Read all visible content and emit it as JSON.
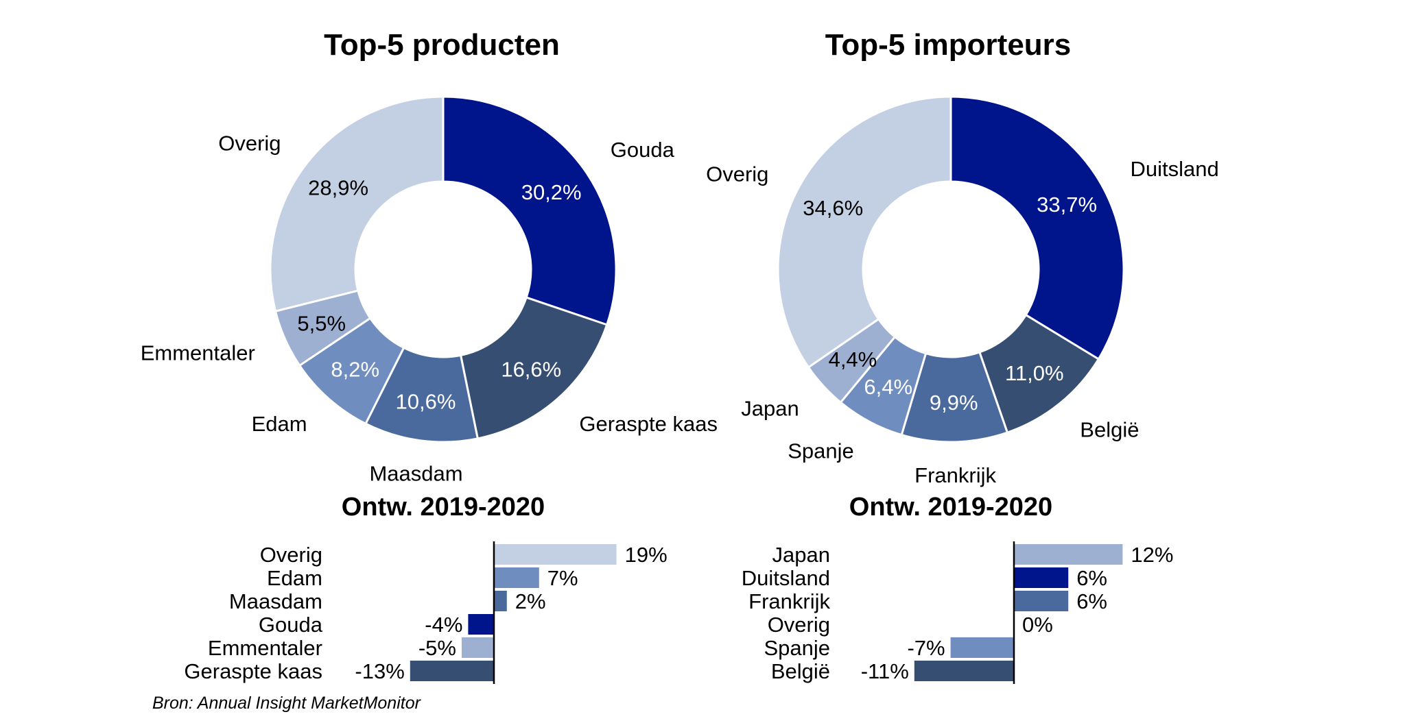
{
  "colors": {
    "dark_blue": "#00148C",
    "slate": "#374E73",
    "mid_blue": "#4A6A9E",
    "steel_blue": "#6F8DBE",
    "periwinkle": "#9EB0D2",
    "light": "#C3D0E3"
  },
  "source": "Bron: Annual Insight MarketMonitor",
  "chart_data": [
    {
      "type": "pie",
      "donut": true,
      "title": "Top-5 producten",
      "slices": [
        {
          "label": "Gouda",
          "value": 30.2,
          "value_label": "30,2%",
          "color": "#00148C"
        },
        {
          "label": "Geraspte kaas",
          "value": 16.6,
          "value_label": "16,6%",
          "color": "#374E73"
        },
        {
          "label": "Maasdam",
          "value": 10.6,
          "value_label": "10,6%",
          "color": "#4A6A9E"
        },
        {
          "label": "Edam",
          "value": 8.2,
          "value_label": "8,2%",
          "color": "#6F8DBE"
        },
        {
          "label": "Emmentaler",
          "value": 5.5,
          "value_label": "5,5%",
          "color": "#9EB0D2"
        },
        {
          "label": "Overig",
          "value": 28.9,
          "value_label": "28,9%",
          "color": "#C3D0E3"
        }
      ]
    },
    {
      "type": "pie",
      "donut": true,
      "title": "Top-5 importeurs",
      "slices": [
        {
          "label": "Duitsland",
          "value": 33.7,
          "value_label": "33,7%",
          "color": "#00148C"
        },
        {
          "label": "België",
          "value": 11.0,
          "value_label": "11,0%",
          "color": "#374E73"
        },
        {
          "label": "Frankrijk",
          "value": 9.9,
          "value_label": "9,9%",
          "color": "#4A6A9E"
        },
        {
          "label": "Spanje",
          "value": 6.4,
          "value_label": "6,4%",
          "color": "#6F8DBE"
        },
        {
          "label": "Japan",
          "value": 4.4,
          "value_label": "4,4%",
          "color": "#9EB0D2"
        },
        {
          "label": "Overig",
          "value": 34.6,
          "value_label": "34,6%",
          "color": "#C3D0E3"
        }
      ]
    },
    {
      "type": "bar",
      "orientation": "horizontal",
      "title": "Ontw. 2019-2020",
      "xlim": [
        -13,
        19
      ],
      "items": [
        {
          "label": "Overig",
          "value": 19,
          "value_label": "19%",
          "color": "#C3D0E3"
        },
        {
          "label": "Edam",
          "value": 7,
          "value_label": "7%",
          "color": "#6F8DBE"
        },
        {
          "label": "Maasdam",
          "value": 2,
          "value_label": "2%",
          "color": "#4A6A9E"
        },
        {
          "label": "Gouda",
          "value": -4,
          "value_label": "-4%",
          "color": "#00148C"
        },
        {
          "label": "Emmentaler",
          "value": -5,
          "value_label": "-5%",
          "color": "#9EB0D2"
        },
        {
          "label": "Geraspte kaas",
          "value": -13,
          "value_label": "-13%",
          "color": "#374E73"
        }
      ]
    },
    {
      "type": "bar",
      "orientation": "horizontal",
      "title": "Ontw. 2019-2020",
      "xlim": [
        -11,
        12
      ],
      "items": [
        {
          "label": "Japan",
          "value": 12,
          "value_label": "12%",
          "color": "#9EB0D2"
        },
        {
          "label": "Duitsland",
          "value": 6,
          "value_label": "6%",
          "color": "#00148C"
        },
        {
          "label": "Frankrijk",
          "value": 6,
          "value_label": "6%",
          "color": "#4A6A9E"
        },
        {
          "label": "Overig",
          "value": 0,
          "value_label": "0%",
          "color": "#C3D0E3"
        },
        {
          "label": "Spanje",
          "value": -7,
          "value_label": "-7%",
          "color": "#6F8DBE"
        },
        {
          "label": "België",
          "value": -11,
          "value_label": "-11%",
          "color": "#374E73"
        }
      ]
    }
  ]
}
